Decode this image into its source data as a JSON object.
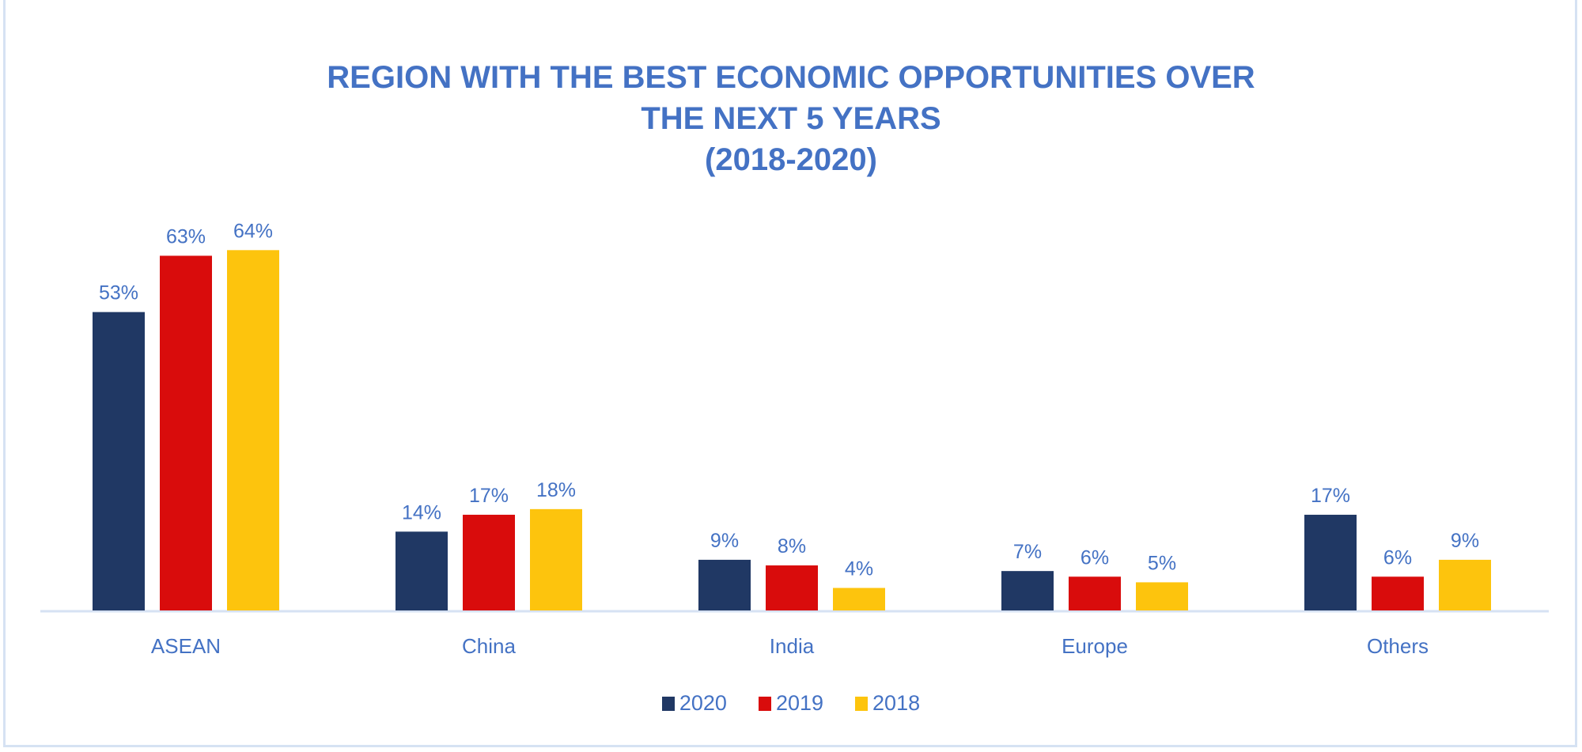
{
  "chart_data": {
    "type": "bar",
    "title": [
      "REGION WITH THE BEST ECONOMIC OPPORTUNITIES OVER",
      "THE NEXT 5 YEARS",
      "(2018-2020)"
    ],
    "categories": [
      "ASEAN",
      "China",
      "India",
      "Europe",
      "Others"
    ],
    "series": [
      {
        "name": "2020",
        "color": "#203864",
        "values": [
          53,
          14,
          9,
          7,
          17
        ]
      },
      {
        "name": "2019",
        "color": "#d90c0c",
        "values": [
          63,
          17,
          8,
          6,
          6
        ]
      },
      {
        "name": "2018",
        "color": "#fdc40d",
        "values": [
          64,
          18,
          4,
          5,
          9
        ]
      }
    ],
    "value_format": "%",
    "ylim": [
      0,
      70
    ],
    "grid": false,
    "legend_position": "bottom",
    "text_color": "#4472c4"
  }
}
